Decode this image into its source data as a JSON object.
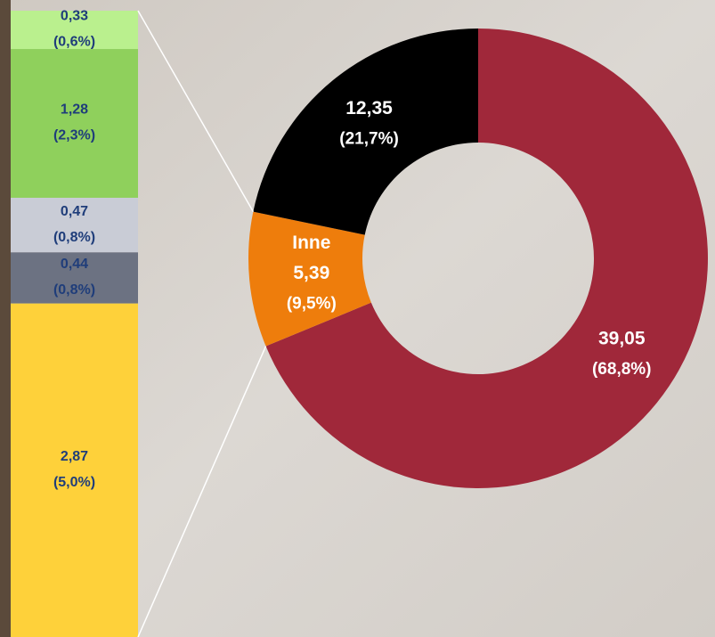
{
  "chart_data": [
    {
      "type": "donut",
      "categories": [
        null,
        "Inne",
        null
      ],
      "values": [
        39.05,
        5.39,
        12.35
      ],
      "value_labels": [
        "39,05",
        "5,39",
        "12,35"
      ],
      "percents": [
        68.8,
        9.5,
        21.7
      ],
      "percent_labels": [
        "(68,8%)",
        "(9,5%)",
        "(21,7%)"
      ],
      "colors": [
        "#a0283a",
        "#ee7d0c",
        "#000000"
      ]
    },
    {
      "type": "stacked_bar",
      "values": [
        0.33,
        1.28,
        0.47,
        0.44,
        2.87
      ],
      "value_labels": [
        "0,33",
        "1,28",
        "0,47",
        "0,44",
        "2,87"
      ],
      "percents": [
        0.6,
        2.3,
        0.8,
        0.8,
        5.0
      ],
      "percent_labels": [
        "(0,6%)",
        "(2,3%)",
        "(0,8%)",
        "(0,8%)",
        "(5,0%)"
      ],
      "colors": [
        "#baf08e",
        "#8fd05c",
        "#c9ccd6",
        "#6c7282",
        "#fed13a"
      ]
    }
  ]
}
